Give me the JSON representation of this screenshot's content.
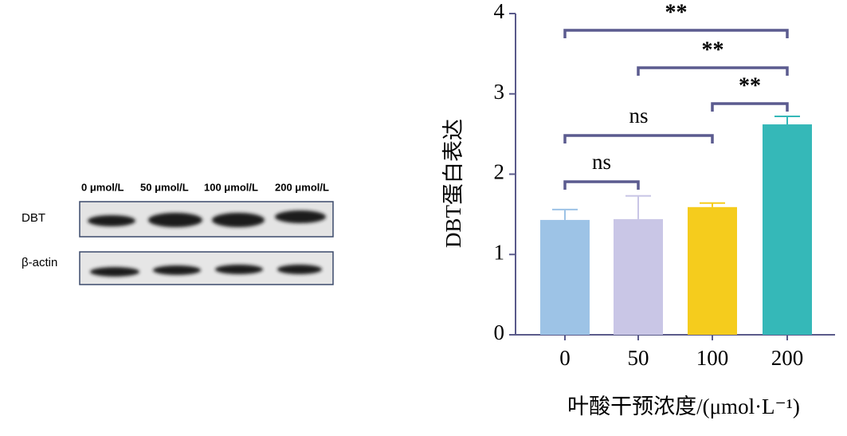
{
  "blot": {
    "lanes": [
      "0 μmol/L",
      "50 μmol/L",
      "100 μmol/L",
      "200 μmol/L"
    ],
    "rows": [
      "DBT",
      "β-actin"
    ]
  },
  "chart_data": {
    "type": "bar",
    "ylabel": "DBT蛋白表达",
    "xlabel": "叶酸干预浓度/(μmol·L⁻¹)",
    "categories": [
      "0",
      "50",
      "100",
      "200"
    ],
    "values": [
      1.43,
      1.44,
      1.59,
      2.62
    ],
    "errors": [
      0.13,
      0.29,
      0.05,
      0.1
    ],
    "colors": [
      "#9dc3e6",
      "#c9c6e6",
      "#f5cc1d",
      "#35b8b8"
    ],
    "ylim": [
      0,
      4
    ],
    "yticks": [
      0,
      1,
      2,
      3,
      4
    ],
    "annotations": [
      {
        "pair": [
          "0",
          "50"
        ],
        "label": "ns"
      },
      {
        "pair": [
          "0",
          "100"
        ],
        "label": "ns"
      },
      {
        "pair": [
          "100",
          "200"
        ],
        "label": "**"
      },
      {
        "pair": [
          "50",
          "200"
        ],
        "label": "**"
      },
      {
        "pair": [
          "0",
          "200"
        ],
        "label": "**"
      }
    ]
  }
}
